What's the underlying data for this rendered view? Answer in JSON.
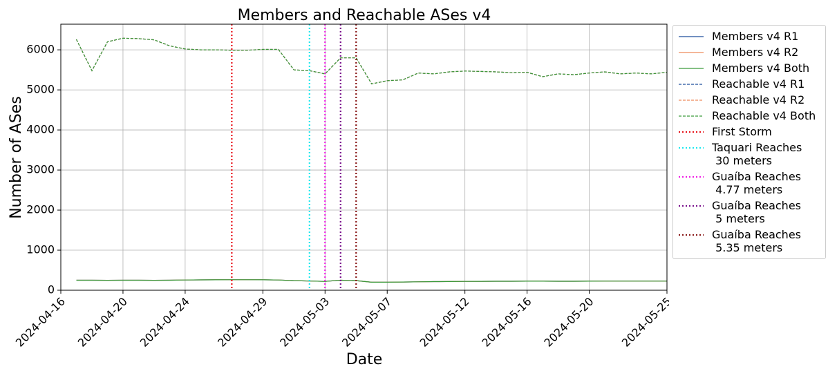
{
  "chart_data": {
    "type": "line",
    "title": "Members and Reachable ASes v4",
    "x_label": "Date",
    "y_label": "Number of ASes",
    "x": [
      "2024-04-17",
      "2024-04-18",
      "2024-04-19",
      "2024-04-20",
      "2024-04-21",
      "2024-04-22",
      "2024-04-23",
      "2024-04-24",
      "2024-04-25",
      "2024-04-26",
      "2024-04-27",
      "2024-04-28",
      "2024-04-29",
      "2024-04-30",
      "2024-05-01",
      "2024-05-02",
      "2024-05-03",
      "2024-05-04",
      "2024-05-05",
      "2024-05-06",
      "2024-05-07",
      "2024-05-08",
      "2024-05-09",
      "2024-05-10",
      "2024-05-11",
      "2024-05-12",
      "2024-05-13",
      "2024-05-14",
      "2024-05-15",
      "2024-05-16",
      "2024-05-17",
      "2024-05-18",
      "2024-05-19",
      "2024-05-20",
      "2024-05-21",
      "2024-05-22",
      "2024-05-23",
      "2024-05-24",
      "2024-05-25"
    ],
    "series": [
      {
        "name": "Members v4 R1",
        "color": "#1f4e9c",
        "style": "solid",
        "values": [
          250,
          250,
          248,
          250,
          250,
          248,
          250,
          255,
          258,
          260,
          262,
          262,
          260,
          255,
          240,
          230,
          220,
          250,
          240,
          200,
          200,
          205,
          210,
          215,
          218,
          220,
          222,
          224,
          225,
          226,
          226,
          225,
          225,
          226,
          228,
          228,
          228,
          228,
          228
        ]
      },
      {
        "name": "Members v4 R2",
        "color": "#ee8a5c",
        "style": "solid",
        "values": [
          250,
          250,
          248,
          250,
          250,
          248,
          250,
          255,
          258,
          260,
          262,
          262,
          260,
          255,
          240,
          230,
          220,
          250,
          240,
          200,
          200,
          205,
          210,
          215,
          218,
          220,
          222,
          224,
          225,
          226,
          226,
          225,
          225,
          226,
          228,
          228,
          228,
          228,
          228
        ]
      },
      {
        "name": "Members v4 Both",
        "color": "#3a9a3a",
        "style": "solid",
        "values": [
          250,
          250,
          248,
          250,
          250,
          248,
          250,
          255,
          258,
          260,
          262,
          262,
          260,
          255,
          240,
          230,
          220,
          250,
          240,
          200,
          200,
          205,
          210,
          215,
          218,
          220,
          222,
          224,
          225,
          226,
          226,
          225,
          225,
          226,
          228,
          228,
          228,
          228,
          228
        ]
      },
      {
        "name": "Reachable v4 R1",
        "color": "#1f4e9c",
        "style": "dashed",
        "values": [
          6260,
          5480,
          6200,
          6290,
          6280,
          6250,
          6100,
          6020,
          6000,
          6000,
          5990,
          5990,
          6010,
          6010,
          5500,
          5480,
          5400,
          5800,
          5800,
          5150,
          5230,
          5250,
          5420,
          5400,
          5450,
          5470,
          5460,
          5450,
          5430,
          5440,
          5330,
          5400,
          5380,
          5420,
          5450,
          5400,
          5420,
          5400,
          5440
        ]
      },
      {
        "name": "Reachable v4 R2",
        "color": "#ee8a5c",
        "style": "dashed",
        "values": [
          6260,
          5480,
          6200,
          6290,
          6280,
          6250,
          6100,
          6020,
          6000,
          6000,
          5990,
          5990,
          6010,
          6010,
          5500,
          5480,
          5400,
          5800,
          5800,
          5150,
          5230,
          5250,
          5420,
          5400,
          5450,
          5470,
          5460,
          5450,
          5430,
          5440,
          5330,
          5400,
          5380,
          5420,
          5450,
          5400,
          5420,
          5400,
          5440
        ]
      },
      {
        "name": "Reachable v4 Both",
        "color": "#3a9a3a",
        "style": "dashed",
        "values": [
          6260,
          5480,
          6200,
          6290,
          6280,
          6250,
          6100,
          6020,
          6000,
          6000,
          5990,
          5990,
          6010,
          6010,
          5500,
          5480,
          5400,
          5800,
          5800,
          5150,
          5230,
          5250,
          5420,
          5400,
          5450,
          5470,
          5460,
          5450,
          5430,
          5440,
          5330,
          5400,
          5380,
          5420,
          5450,
          5400,
          5420,
          5400,
          5440
        ]
      }
    ],
    "vlines": [
      {
        "name": "First Storm",
        "color": "#e8141c",
        "x": "2024-04-27"
      },
      {
        "name": "Taquari Reaches\n 30 meters",
        "color": "#1ee8ee",
        "x": "2024-05-02"
      },
      {
        "name": "Guaíba Reaches\n 4.77 meters",
        "color": "#f01ee6",
        "x": "2024-05-03"
      },
      {
        "name": "Guaíba Reaches\n 5 meters",
        "color": "#7a108c",
        "x": "2024-05-04"
      },
      {
        "name": "Guaíba Reaches\n 5.35 meters",
        "color": "#8a1a1a",
        "x": "2024-05-05"
      }
    ],
    "xlim": [
      "2024-04-16",
      "2024-05-25"
    ],
    "xticks": [
      "2024-04-16",
      "2024-04-20",
      "2024-04-24",
      "2024-04-29",
      "2024-05-03",
      "2024-05-07",
      "2024-05-12",
      "2024-05-16",
      "2024-05-20",
      "2024-05-25"
    ],
    "ylim": [
      0,
      6640
    ],
    "yticks": [
      0,
      1000,
      2000,
      3000,
      4000,
      5000,
      6000
    ],
    "grid": true
  }
}
